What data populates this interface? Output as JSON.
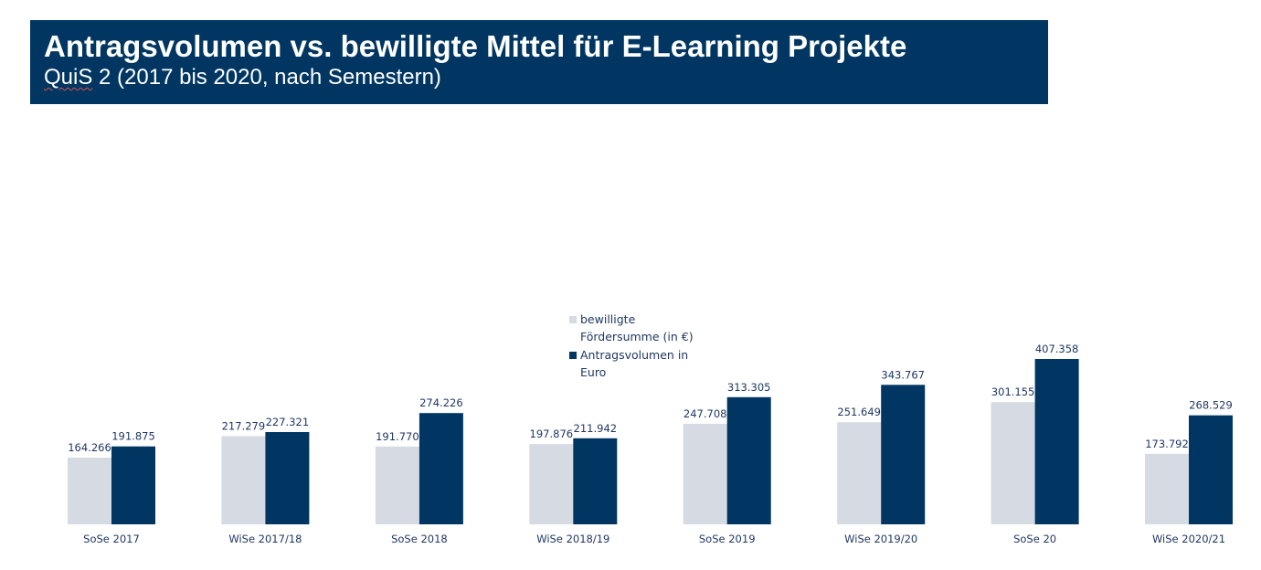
{
  "header": {
    "title": "Antragsvolumen vs. bewilligte Mittel für E-Learning Projekte",
    "subtitle_underlined": "QuiS",
    "subtitle_rest": " 2 (2017 bis 2020, nach Semestern)"
  },
  "colors": {
    "header_bg": "#003661",
    "bewilligt": "#d5dae3",
    "antrag": "#003661",
    "label": "#1f3864"
  },
  "chart_data": {
    "type": "bar",
    "categories": [
      "SoSe 2017",
      "WiSe 2017/18",
      "SoSe 2018",
      "WiSe 2018/19",
      "SoSe 2019",
      "WiSe 2019/20",
      "SoSe 20",
      "WiSe 2020/21"
    ],
    "series": [
      {
        "name": "bewilligte Fördersumme (in €)",
        "legend_lines": [
          "bewilligte",
          "Fördersumme (in €)"
        ],
        "values": [
          164266,
          217279,
          191770,
          197876,
          247708,
          251649,
          301155,
          173792
        ],
        "labels": [
          "164.266",
          "217.279",
          "191.770",
          "197.876",
          "247.708",
          "251.649",
          "301.155",
          "173.792"
        ],
        "color": "#d5dae3"
      },
      {
        "name": "Antragsvolumen in Euro",
        "legend_lines": [
          "Antragsvolumen in",
          "Euro"
        ],
        "values": [
          191875,
          227321,
          274226,
          211942,
          313305,
          343767,
          407358,
          268529
        ],
        "labels": [
          "191.875",
          "227.321",
          "274.226",
          "211.942",
          "313.305",
          "343.767",
          "407.358",
          "268.529"
        ],
        "color": "#003661"
      }
    ],
    "ylim": [
      0,
      407358
    ],
    "grid": false,
    "legend_position": "top-center"
  }
}
